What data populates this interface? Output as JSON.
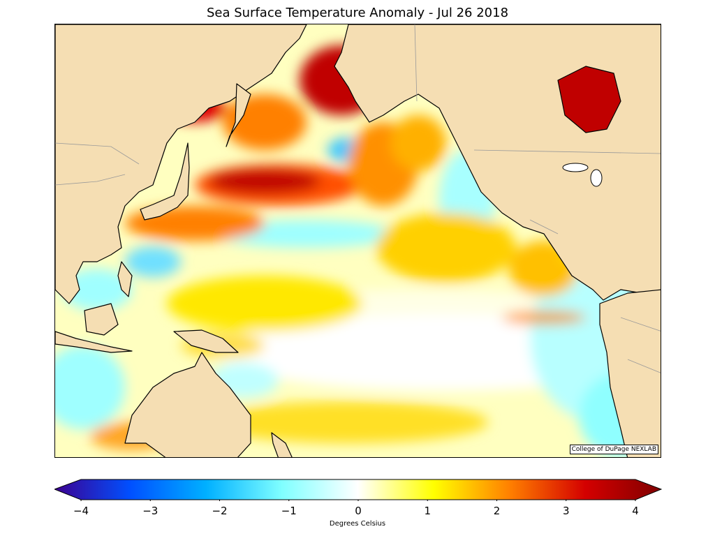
{
  "title": "Sea Surface Temperature Anomaly - Jul 26 2018",
  "credit": "College of DuPage NEXLAB",
  "map": {
    "region": "Pacific Ocean",
    "land_color": "#f5deb3",
    "coast_color": "#000000",
    "border_color": "#999999"
  },
  "colorbar": {
    "label": "Degrees Celsius",
    "range": [
      -4,
      4
    ],
    "ticks": [
      "−4",
      "−3",
      "−2",
      "−1",
      "0",
      "1",
      "2",
      "3",
      "4"
    ],
    "stops": [
      "#3d0090",
      "#0050ff",
      "#00b0ff",
      "#80ffff",
      "#ffffff",
      "#ffff00",
      "#ff8000",
      "#d40000",
      "#800000"
    ]
  }
}
